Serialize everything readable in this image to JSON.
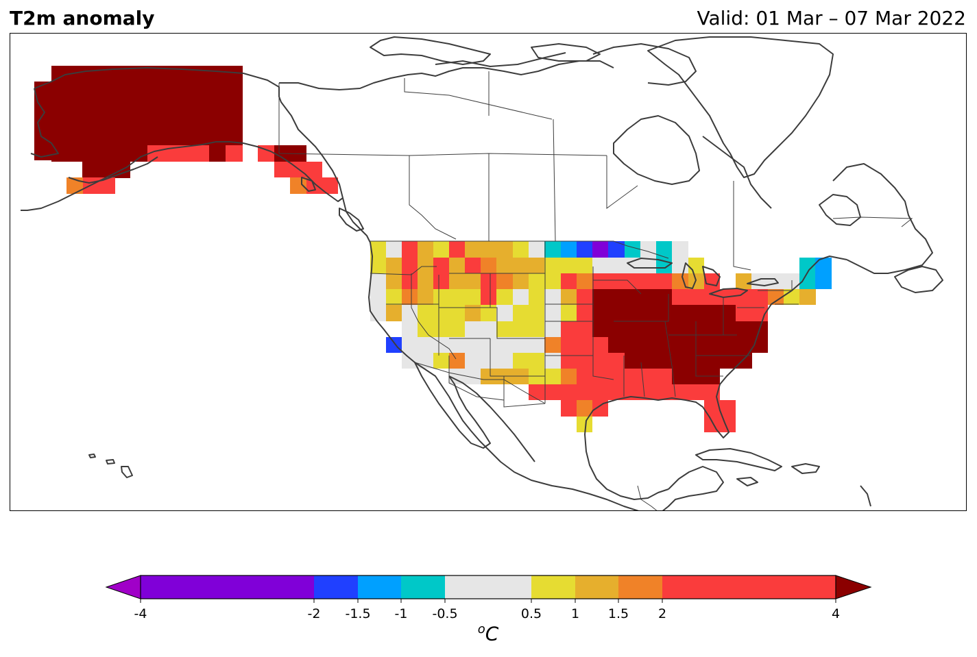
{
  "header": {
    "title": "T2m anomaly",
    "valid": "Valid: 01 Mar – 07 Mar 2022"
  },
  "colorbar": {
    "unit_main": "C",
    "unit_sup": "o",
    "ticks": [
      "-4",
      "-2",
      "-1.5",
      "-1",
      "-0.5",
      "0.5",
      "1",
      "1.5",
      "2",
      "4"
    ],
    "tick_values": [
      -4,
      -2,
      -1.5,
      -1,
      -0.5,
      0.5,
      1,
      1.5,
      2,
      4
    ],
    "bins": [
      {
        "from": -4,
        "to": -2,
        "color": "#8000d8"
      },
      {
        "from": -2,
        "to": -1.5,
        "color": "#2040ff"
      },
      {
        "from": -1.5,
        "to": -1,
        "color": "#00a0ff"
      },
      {
        "from": -1,
        "to": -0.5,
        "color": "#00c8c8"
      },
      {
        "from": -0.5,
        "to": 0.5,
        "color": "#e6e6e6"
      },
      {
        "from": 0.5,
        "to": 1,
        "color": "#e6dc32"
      },
      {
        "from": 1,
        "to": 1.5,
        "color": "#e6af2d"
      },
      {
        "from": 1.5,
        "to": 2,
        "color": "#f08228"
      },
      {
        "from": 2,
        "to": 4,
        "color": "#fa3c3c"
      }
    ],
    "under_color": "#a000c8",
    "over_color": "#8b0000"
  },
  "map": {
    "region": "North America",
    "coastline_color": "#3c3c3c",
    "border_color": "#3c3c3c"
  }
}
